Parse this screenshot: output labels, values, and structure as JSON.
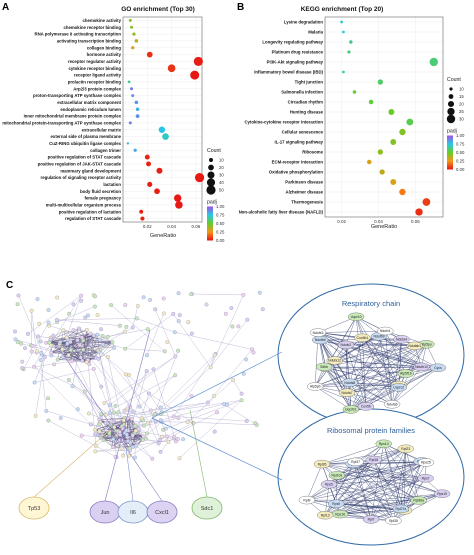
{
  "chart_data": [
    {
      "type": "scatter",
      "panel": "A",
      "title": "GO enrichment (Top 30)",
      "xlabel": "GeneRatio",
      "xlim": [
        0,
        0.065
      ],
      "xticks": [
        0.02,
        0.04,
        0.06
      ],
      "points": [
        {
          "term": "chemokine activity",
          "x": 0.006,
          "count": 6,
          "padj": 0.43
        },
        {
          "term": "chemokine receptor binding",
          "x": 0.007,
          "count": 6,
          "padj": 0.45
        },
        {
          "term": "RNA polymerase II activating transcription",
          "x": 0.009,
          "count": 7,
          "padj": 0.42
        },
        {
          "term": "activating transcription binding",
          "x": 0.011,
          "count": 8,
          "padj": 0.35
        },
        {
          "term": "collagen binding",
          "x": 0.008,
          "count": 7,
          "padj": 0.3
        },
        {
          "term": "hormone activity",
          "x": 0.022,
          "count": 20,
          "padj": 0.05
        },
        {
          "term": "receptor regulator activity",
          "x": 0.062,
          "count": 50,
          "padj": 0.02
        },
        {
          "term": "cytokine receptor binding",
          "x": 0.04,
          "count": 35,
          "padj": 0.06
        },
        {
          "term": "receptor ligand activity",
          "x": 0.059,
          "count": 48,
          "padj": 0.01
        },
        {
          "term": "prolactin receptor binding",
          "x": 0.005,
          "count": 5,
          "padj": 0.62
        },
        {
          "term": "Arp2/3 protein complex",
          "x": 0.007,
          "count": 6,
          "padj": 0.92
        },
        {
          "term": "proton-transporting ATP synthase complex",
          "x": 0.008,
          "count": 6,
          "padj": 0.88
        },
        {
          "term": "extracellular matrix component",
          "x": 0.011,
          "count": 8,
          "padj": 0.85
        },
        {
          "term": "endoplasmic reticulum lumen",
          "x": 0.012,
          "count": 8,
          "padj": 0.8
        },
        {
          "term": "inner mitochondrial membrane protein complex",
          "x": 0.012,
          "count": 9,
          "padj": 0.87
        },
        {
          "term": "mitochondrial protein-transporting ATP synthase complex",
          "x": 0.006,
          "count": 6,
          "padj": 0.9
        },
        {
          "term": "extracellular matrix",
          "x": 0.032,
          "count": 25,
          "padj": 0.76
        },
        {
          "term": "external side of plasma membrane",
          "x": 0.035,
          "count": 27,
          "padj": 0.7
        },
        {
          "term": "CuZ-RING ubiquitin ligase complex",
          "x": 0.004,
          "count": 4,
          "padj": 0.8
        },
        {
          "term": "collagen trimer",
          "x": 0.01,
          "count": 7,
          "padj": 0.82
        },
        {
          "term": "positive regulation of STAT cascade",
          "x": 0.02,
          "count": 15,
          "padj": 0.03
        },
        {
          "term": "positive regulation of JAK-STAT cascade",
          "x": 0.021,
          "count": 15,
          "padj": 0.03
        },
        {
          "term": "mammary gland development",
          "x": 0.03,
          "count": 22,
          "padj": 0.02
        },
        {
          "term": "regulation of signaling receptor activity",
          "x": 0.063,
          "count": 50,
          "padj": 0.01
        },
        {
          "term": "lactation",
          "x": 0.022,
          "count": 16,
          "padj": 0.02
        },
        {
          "term": "body fluid secretion",
          "x": 0.028,
          "count": 20,
          "padj": 0.02
        },
        {
          "term": "female pregnancy",
          "x": 0.045,
          "count": 33,
          "padj": 0.01
        },
        {
          "term": "multi-multicellular organism process",
          "x": 0.046,
          "count": 34,
          "padj": 0.01
        },
        {
          "term": "positive regulation of lactation",
          "x": 0.015,
          "count": 10,
          "padj": 0.03
        },
        {
          "term": "regulation of STAT cascade",
          "x": 0.016,
          "count": 11,
          "padj": 0.03
        }
      ],
      "legend_count_title": "Count",
      "legend_count": [
        10,
        20,
        30,
        40,
        50
      ],
      "legend_padj_title": "padj",
      "legend_padj": [
        "1.00",
        "0.75",
        "0.50",
        "0.25",
        "0.00"
      ]
    },
    {
      "type": "scatter",
      "panel": "B",
      "title": "KEGG enrichment (Top 20)",
      "xlabel": "GeneRatio",
      "xlim": [
        0.011,
        0.075
      ],
      "xticks": [
        0.02,
        0.04,
        0.06
      ],
      "points": [
        {
          "term": "Lysine degradation",
          "x": 0.02,
          "count": 9,
          "padj": 0.7
        },
        {
          "term": "Malaria",
          "x": 0.021,
          "count": 9,
          "padj": 0.72
        },
        {
          "term": "Longevity regulating pathway",
          "x": 0.025,
          "count": 11,
          "padj": 0.63
        },
        {
          "term": "Platinum drug resistance",
          "x": 0.024,
          "count": 10,
          "padj": 0.62
        },
        {
          "term": "PI3K-Akt signaling pathway",
          "x": 0.07,
          "count": 30,
          "padj": 0.6
        },
        {
          "term": "Inflammatory bowel disease (IBD)",
          "x": 0.021,
          "count": 9,
          "padj": 0.67
        },
        {
          "term": "Tight junction",
          "x": 0.041,
          "count": 17,
          "padj": 0.58
        },
        {
          "term": "Salmonella infection",
          "x": 0.027,
          "count": 11,
          "padj": 0.52
        },
        {
          "term": "Circadian rhythm",
          "x": 0.036,
          "count": 14,
          "padj": 0.52
        },
        {
          "term": "Hunting disease",
          "x": 0.047,
          "count": 19,
          "padj": 0.5
        },
        {
          "term": "Cytokine-cytokine receptor interaction",
          "x": 0.057,
          "count": 23,
          "padj": 0.55
        },
        {
          "term": "Cellular senescence",
          "x": 0.053,
          "count": 21,
          "padj": 0.45
        },
        {
          "term": "IL-17 signaling pathway",
          "x": 0.048,
          "count": 19,
          "padj": 0.45
        },
        {
          "term": "Ribosome",
          "x": 0.041,
          "count": 17,
          "padj": 0.43
        },
        {
          "term": "ECM-receptor interaction",
          "x": 0.035,
          "count": 14,
          "padj": 0.3
        },
        {
          "term": "Oxidative phosphorylation",
          "x": 0.042,
          "count": 17,
          "padj": 0.35
        },
        {
          "term": "Parkinson disease",
          "x": 0.048,
          "count": 19,
          "padj": 0.3
        },
        {
          "term": "Alzheimer disease",
          "x": 0.053,
          "count": 21,
          "padj": 0.2
        },
        {
          "term": "Thermogenesis",
          "x": 0.066,
          "count": 27,
          "padj": 0.08
        },
        {
          "term": "Non-alcoholic fatty liver disease (NAFLD)",
          "x": 0.062,
          "count": 25,
          "padj": 0.05
        }
      ],
      "legend_count_title": "Count",
      "legend_count": [
        10,
        15,
        20,
        25,
        30
      ],
      "legend_padj_title": "padj",
      "legend_padj": [
        "1.00",
        "0.75",
        "0.50",
        "0.25",
        "0.00"
      ]
    }
  ],
  "panelC": {
    "label": "C",
    "cluster1_title": "Respiratory chain",
    "cluster2_title": "Ribosomal protein families",
    "hubs": [
      {
        "name": "Tp53",
        "color": "#fff6d6",
        "stroke": "#d8b868"
      },
      {
        "name": "Jun",
        "color": "#d9d0f2",
        "stroke": "#8a7cc4"
      },
      {
        "name": "Il6",
        "color": "#e4eef9",
        "stroke": "#7b98c8"
      },
      {
        "name": "Cxcl1",
        "color": "#dcd2f2",
        "stroke": "#8a7cc4"
      },
      {
        "name": "Sdc1",
        "color": "#dff1d8",
        "stroke": "#7fb46a"
      }
    ],
    "cluster1_nodes": [
      "Ndufb10",
      "Atp5f1b",
      "Ndufa13",
      "Uqcrc2",
      "Ndufa6",
      "Cox5b",
      "Uqcrfs1",
      "Ndufa7",
      "Ndufs8",
      "Atp5pb",
      "Ndufb4",
      "Sdhb",
      "Ndufa12",
      "Ndufb6",
      "Ndufs3",
      "Ndufc2",
      "Uqcr10",
      "Cox6b1",
      "Ndufb9",
      "Ndufv1",
      "Ndufa4",
      "Atp5po",
      "Ndufab1",
      "Cycs"
    ],
    "cluster2_nodes": [
      "Rps19",
      "Rpl36a",
      "Rps20",
      "Rpl27a",
      "Rpl35",
      "Rpl7",
      "Rps16",
      "Rpl13",
      "Rps9",
      "Rpl9",
      "Rps5",
      "Rpl10a",
      "Rpl26",
      "Rps3a",
      "Rpl37",
      "Rpl18",
      "Rps14",
      "Rpl23",
      "Rpl12",
      "Rps25",
      "Rps7"
    ]
  }
}
